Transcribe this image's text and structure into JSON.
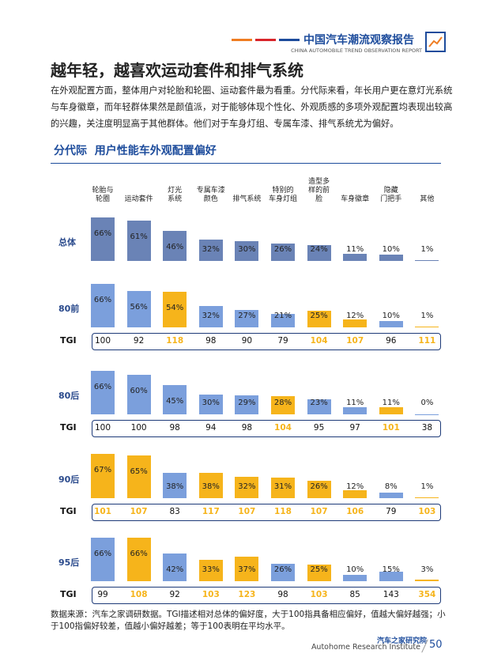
{
  "header": {
    "title": "中国汽车潮流观察报告",
    "subtitle": "CHINA AUTOMOBILE TREND OBSERVATION REPORT"
  },
  "title": "越年轻，越喜欢运动套件和排气系统",
  "body": "在外观配置方面，整体用户对轮胎和轮圈、运动套件最为看重。分代际来看，年长用户更在意灯光系统与车身徽章，而年轻群体果然是颜值派，对于能够体现个性化、外观质感的多项外观配置均表现出较高的兴趣，关注度明显高于其他群体。他们对于车身灯组、专属车漆、排气系统尤为偏好。",
  "chart": {
    "title": "分代际  用户性能车外观配置偏好",
    "categories": [
      "轮胎与\n轮圈",
      "运动套件",
      "灯光\n系统",
      "专属车漆\n颜色",
      "排气系统",
      "特别的\n车身灯组",
      "造型多\n样的前\n脸",
      "车身徽章",
      "隐藏\n门把手",
      "其他"
    ],
    "tgi_label": "TGI",
    "highlight_color": "#f6b41b",
    "groups": [
      {
        "name": "总体",
        "color": "#6a83b6",
        "values": [
          66,
          61,
          46,
          32,
          30,
          26,
          24,
          11,
          10,
          1
        ],
        "value_labels": [
          "66%",
          "61%",
          "46%",
          "32%",
          "30%",
          "26%",
          "24%",
          "11%",
          "10%",
          "1%"
        ],
        "highlight": [
          false,
          false,
          false,
          false,
          false,
          false,
          false,
          false,
          false,
          false
        ]
      },
      {
        "name": "80前",
        "color": "#7b9fdc",
        "values": [
          66,
          56,
          54,
          32,
          27,
          21,
          25,
          12,
          10,
          1
        ],
        "value_labels": [
          "66%",
          "56%",
          "54%",
          "32%",
          "27%",
          "21%",
          "25%",
          "12%",
          "10%",
          "1%"
        ],
        "highlight": [
          false,
          false,
          true,
          false,
          false,
          false,
          true,
          true,
          false,
          true
        ],
        "tgi": [
          100,
          92,
          118,
          98,
          90,
          79,
          104,
          107,
          96,
          111
        ]
      },
      {
        "name": "80后",
        "color": "#7b9fdc",
        "values": [
          66,
          60,
          45,
          30,
          29,
          28,
          23,
          11,
          11,
          0
        ],
        "value_labels": [
          "66%",
          "60%",
          "45%",
          "30%",
          "29%",
          "28%",
          "23%",
          "11%",
          "11%",
          "0%"
        ],
        "highlight": [
          false,
          false,
          false,
          false,
          false,
          true,
          false,
          false,
          true,
          false
        ],
        "tgi": [
          100,
          100,
          98,
          94,
          98,
          104,
          95,
          97,
          101,
          38
        ]
      },
      {
        "name": "90后",
        "color": "#7b9fdc",
        "values": [
          67,
          65,
          38,
          38,
          32,
          31,
          26,
          12,
          8,
          1
        ],
        "value_labels": [
          "67%",
          "65%",
          "38%",
          "38%",
          "32%",
          "31%",
          "26%",
          "12%",
          "8%",
          "1%"
        ],
        "highlight": [
          true,
          true,
          false,
          true,
          true,
          true,
          true,
          true,
          false,
          true
        ],
        "tgi": [
          101,
          107,
          83,
          117,
          107,
          118,
          107,
          106,
          79,
          103
        ]
      },
      {
        "name": "95后",
        "color": "#7b9fdc",
        "values": [
          66,
          66,
          42,
          33,
          37,
          26,
          25,
          10,
          15,
          3
        ],
        "value_labels": [
          "66%",
          "66%",
          "42%",
          "33%",
          "37%",
          "26%",
          "25%",
          "10%",
          "15%",
          "3%"
        ],
        "highlight": [
          false,
          true,
          false,
          true,
          true,
          false,
          true,
          false,
          false,
          true
        ],
        "tgi": [
          99,
          108,
          92,
          103,
          123,
          98,
          103,
          85,
          143,
          354
        ]
      }
    ]
  },
  "footnote": "数据来源：汽车之家调研数据。TGI描述相对总体的偏好度，大于100指具备相应偏好，值越大偏好越强；小于100指偏好较差，值越小偏好越差；等于100表明在平均水平。",
  "footer": {
    "org": "汽车之家研究院",
    "org_en": "Autohome Research Institute",
    "page": "50"
  }
}
